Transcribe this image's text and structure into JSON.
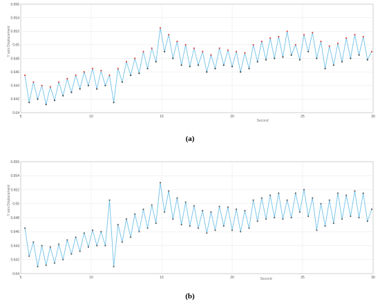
{
  "colors": {
    "line": "#6fc1e8",
    "peak_marker_a": "#e0403a",
    "valley_marker_a": "#404040",
    "marker_b": "#606060",
    "grid": "#e6e6e6",
    "axis": "#888888"
  },
  "chart_data": [
    {
      "type": "line",
      "panel_caption": "(a)",
      "xlabel": "Second",
      "ylabel": "Y axis Displacement",
      "xlim": [
        5,
        30
      ],
      "ylim": [
        0.64,
        0.656
      ],
      "x_ticks": [
        5,
        10,
        15,
        20,
        25,
        30
      ],
      "y_ticks": [
        0.64,
        0.642,
        0.644,
        0.646,
        0.648,
        0.65,
        0.652,
        0.654,
        0.656
      ],
      "x_tick_labels": [
        "5",
        "10",
        "15",
        "20",
        "25",
        "30"
      ],
      "y_tick_labels": [
        "0.64",
        "0.642",
        "0.644",
        "0.646",
        "0.648",
        "0.65",
        "0.652",
        "0.654",
        "0.656"
      ],
      "grid": true,
      "markers": "peaks red, valleys dark",
      "series": [
        {
          "x": [
            5.3,
            5.6,
            5.9,
            6.2,
            6.5,
            6.8,
            7.1,
            7.4,
            7.7,
            8.0,
            8.3,
            8.6,
            8.9,
            9.2,
            9.5,
            9.8,
            10.1,
            10.4,
            10.7,
            11.0,
            11.3,
            11.6,
            11.9,
            12.2,
            12.5,
            12.8,
            13.1,
            13.4,
            13.7,
            14.0,
            14.3,
            14.6,
            14.9,
            15.2,
            15.5,
            15.8,
            16.1,
            16.4,
            16.7,
            17.0,
            17.3,
            17.6,
            17.9,
            18.2,
            18.5,
            18.8,
            19.1,
            19.4,
            19.7,
            20.0,
            20.3,
            20.6,
            20.9,
            21.2,
            21.5,
            21.8,
            22.1,
            22.4,
            22.7,
            23.0,
            23.3,
            23.6,
            23.9,
            24.2,
            24.5,
            24.8,
            25.1,
            25.4,
            25.7,
            26.0,
            26.3,
            26.6,
            26.9,
            27.2,
            27.5,
            27.8,
            28.1,
            28.4,
            28.7,
            29.0,
            29.3,
            29.6,
            29.9
          ],
          "y": [
            0.6455,
            0.6415,
            0.6445,
            0.642,
            0.644,
            0.6412,
            0.6438,
            0.6418,
            0.6445,
            0.6425,
            0.645,
            0.643,
            0.6455,
            0.6435,
            0.646,
            0.644,
            0.6465,
            0.6435,
            0.6462,
            0.644,
            0.6455,
            0.6415,
            0.6465,
            0.6445,
            0.6475,
            0.6455,
            0.648,
            0.6458,
            0.649,
            0.6465,
            0.6495,
            0.6475,
            0.6525,
            0.649,
            0.6515,
            0.648,
            0.6505,
            0.647,
            0.65,
            0.6468,
            0.6495,
            0.647,
            0.649,
            0.646,
            0.6485,
            0.6465,
            0.6495,
            0.647,
            0.6492,
            0.6468,
            0.649,
            0.646,
            0.6488,
            0.6465,
            0.65,
            0.6475,
            0.6505,
            0.6478,
            0.651,
            0.648,
            0.6512,
            0.6482,
            0.652,
            0.6485,
            0.65,
            0.6478,
            0.6515,
            0.649,
            0.6518,
            0.648,
            0.6505,
            0.6465,
            0.6498,
            0.647,
            0.6502,
            0.6475,
            0.651,
            0.648,
            0.6515,
            0.6485,
            0.6512,
            0.6478,
            0.649
          ]
        }
      ]
    },
    {
      "type": "line",
      "panel_caption": "(b)",
      "xlabel": "Second",
      "ylabel": "Y axis Displacement",
      "xlim": [
        5,
        30
      ],
      "ylim": [
        0.64,
        0.656
      ],
      "x_ticks": [
        5,
        10,
        15,
        20,
        25,
        30
      ],
      "y_ticks": [
        0.64,
        0.642,
        0.644,
        0.646,
        0.648,
        0.65,
        0.652,
        0.654,
        0.656
      ],
      "x_tick_labels": [
        "5",
        "10",
        "15",
        "20",
        "25",
        "30"
      ],
      "y_tick_labels": [
        "0.64",
        "0.642",
        "0.644",
        "0.646",
        "0.648",
        "0.65",
        "0.652",
        "0.654",
        "0.656"
      ],
      "grid": true,
      "markers": "peaks and valleys dark",
      "series": [
        {
          "x": [
            5.3,
            5.6,
            5.9,
            6.2,
            6.5,
            6.8,
            7.1,
            7.4,
            7.7,
            8.0,
            8.3,
            8.6,
            8.9,
            9.2,
            9.5,
            9.8,
            10.1,
            10.4,
            10.7,
            11.0,
            11.3,
            11.6,
            11.9,
            12.2,
            12.5,
            12.8,
            13.1,
            13.4,
            13.7,
            14.0,
            14.3,
            14.6,
            14.9,
            15.2,
            15.5,
            15.8,
            16.1,
            16.4,
            16.7,
            17.0,
            17.3,
            17.6,
            17.9,
            18.2,
            18.5,
            18.8,
            19.1,
            19.4,
            19.7,
            20.0,
            20.3,
            20.6,
            20.9,
            21.2,
            21.5,
            21.8,
            22.1,
            22.4,
            22.7,
            23.0,
            23.3,
            23.6,
            23.9,
            24.2,
            24.5,
            24.8,
            25.1,
            25.4,
            25.7,
            26.0,
            26.3,
            26.6,
            26.9,
            27.2,
            27.5,
            27.8,
            28.1,
            28.4,
            28.7,
            29.0,
            29.3,
            29.6,
            29.9
          ],
          "y": [
            0.6465,
            0.6425,
            0.6445,
            0.641,
            0.644,
            0.6412,
            0.6438,
            0.6415,
            0.6442,
            0.642,
            0.6448,
            0.6428,
            0.6452,
            0.6432,
            0.6458,
            0.6438,
            0.6462,
            0.644,
            0.646,
            0.644,
            0.6505,
            0.641,
            0.647,
            0.6445,
            0.6478,
            0.6452,
            0.6485,
            0.646,
            0.6492,
            0.6465,
            0.6498,
            0.6472,
            0.653,
            0.6488,
            0.6518,
            0.6478,
            0.6508,
            0.647,
            0.6502,
            0.6468,
            0.6497,
            0.6465,
            0.649,
            0.6458,
            0.6488,
            0.6462,
            0.6496,
            0.6468,
            0.6495,
            0.6462,
            0.6492,
            0.646,
            0.649,
            0.6465,
            0.6505,
            0.6475,
            0.6508,
            0.6478,
            0.6512,
            0.648,
            0.6515,
            0.6478,
            0.6505,
            0.648,
            0.6515,
            0.6488,
            0.652,
            0.6482,
            0.6508,
            0.6462,
            0.65,
            0.6468,
            0.6505,
            0.6472,
            0.6515,
            0.6478,
            0.6512,
            0.6482,
            0.6518,
            0.648,
            0.6515,
            0.6475,
            0.6492
          ]
        }
      ]
    }
  ]
}
